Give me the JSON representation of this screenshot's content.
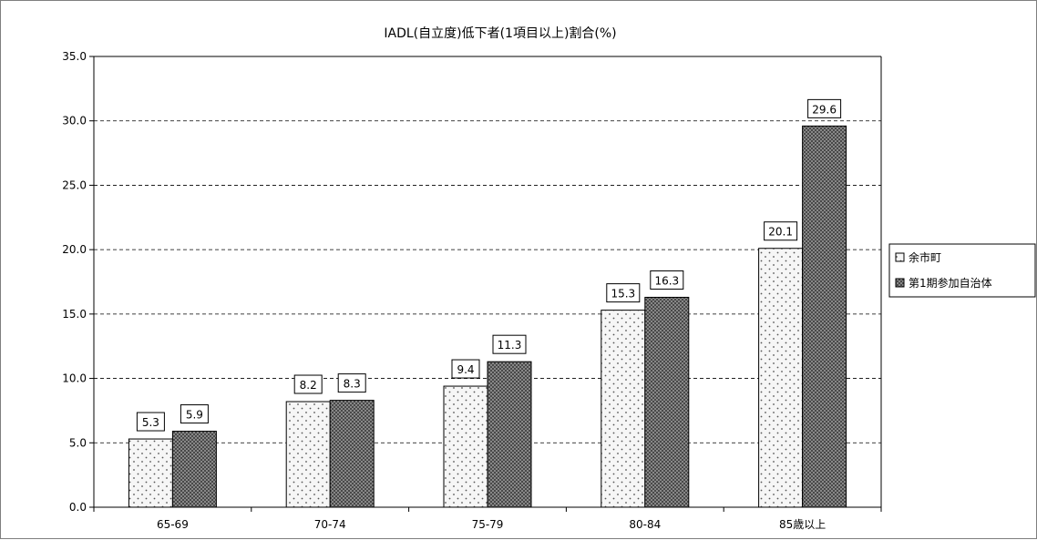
{
  "chart_data": {
    "type": "bar",
    "title": "IADL(自立度)低下者(1項目以上)割合(%)",
    "xlabel": "",
    "ylabel": "",
    "categories": [
      "65-69",
      "70-74",
      "75-79",
      "80-84",
      "85歳以上"
    ],
    "series": [
      {
        "name": "余市町",
        "values": [
          5.3,
          8.2,
          9.4,
          15.3,
          20.1
        ],
        "pattern": "dots"
      },
      {
        "name": "第1期参加自治体",
        "values": [
          5.9,
          8.3,
          11.3,
          16.3,
          29.6
        ],
        "pattern": "crosshatch"
      }
    ],
    "ylim": [
      0,
      35
    ],
    "yticks": [
      "0.0",
      "5.0",
      "10.0",
      "15.0",
      "20.0",
      "25.0",
      "30.0",
      "35.0"
    ],
    "grid": true,
    "legend_position": "right",
    "colors": {
      "series1_fill": "#f4f4f4",
      "series2_fill": "#8c8c8c",
      "outline": "#000000",
      "grid": "#000000"
    }
  }
}
